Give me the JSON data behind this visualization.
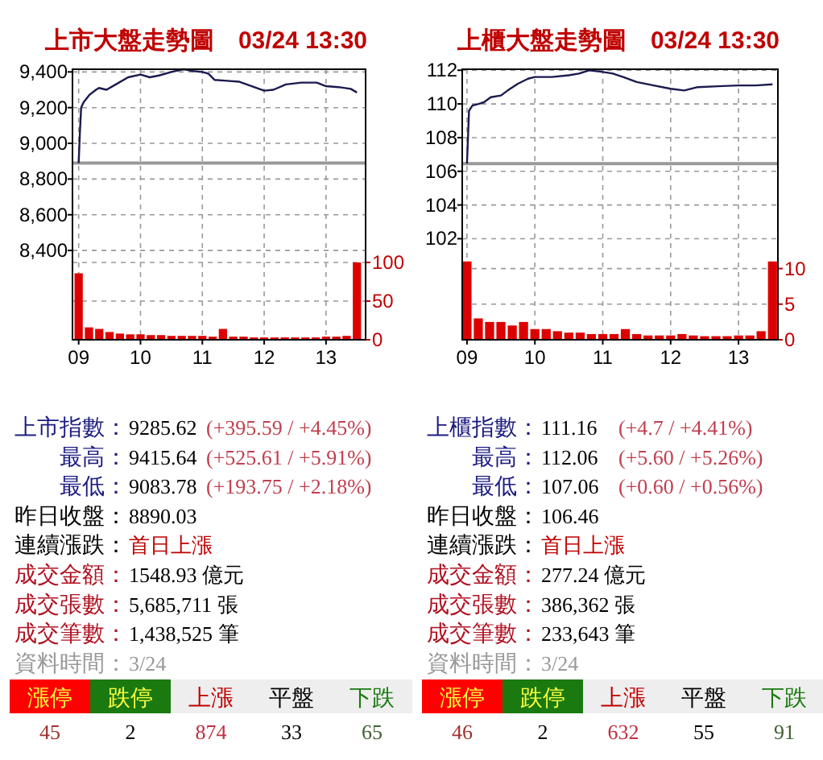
{
  "chart_data": [
    {
      "type": "line",
      "title": "上市大盤走勢圖　03/24 13:30",
      "grid": true,
      "xlim": [
        8.9,
        13.64
      ],
      "xticks": [
        {
          "value": 9,
          "label": "09"
        },
        10,
        11,
        12,
        13
      ],
      "ylim": [
        7900,
        9415
      ],
      "yticks": [
        {
          "value": 8400,
          "label": "8,400"
        },
        {
          "value": 8600,
          "label": "8,600"
        },
        {
          "value": 8800,
          "label": "8,800"
        },
        {
          "value": 9000,
          "label": "9,000"
        },
        {
          "value": 9200,
          "label": "9,200"
        },
        {
          "value": 9400,
          "label": "9,400"
        }
      ],
      "y2lim": [
        0,
        350
      ],
      "y2ticks": [
        0,
        50,
        100
      ],
      "ref_lines": [
        {
          "axis": "y",
          "value": 8890.03,
          "color": "#999999"
        }
      ],
      "series": [
        {
          "type": "line",
          "color": "#1a1a4e",
          "x": [
            9,
            9.02,
            9.04,
            9.08,
            9.17,
            9.28,
            9.33,
            9.45,
            9.6,
            9.8,
            10,
            10.15,
            10.3,
            10.5,
            10.7,
            10.85,
            11,
            11.1,
            11.2,
            11.4,
            11.6,
            11.8,
            12,
            12.15,
            12.35,
            12.6,
            12.85,
            13,
            13.2,
            13.4,
            13.5
          ],
          "values": [
            8890,
            9060,
            9200,
            9230,
            9270,
            9300,
            9310,
            9300,
            9330,
            9370,
            9385,
            9370,
            9380,
            9400,
            9415,
            9405,
            9400,
            9390,
            9355,
            9350,
            9345,
            9320,
            9295,
            9300,
            9330,
            9340,
            9340,
            9320,
            9315,
            9305,
            9285
          ]
        },
        {
          "type": "bar",
          "axis": "y2",
          "color": "#dd0000",
          "x": [
            9,
            9.167,
            9.333,
            9.5,
            9.667,
            9.833,
            10,
            10.167,
            10.333,
            10.5,
            10.667,
            10.833,
            11,
            11.167,
            11.333,
            11.5,
            11.667,
            11.833,
            12,
            12.167,
            12.333,
            12.5,
            12.667,
            12.833,
            13,
            13.167,
            13.333,
            13.5
          ],
          "values": [
            86,
            16,
            14,
            10,
            8,
            7,
            7,
            6,
            6,
            5,
            5,
            5,
            5,
            4,
            14,
            4,
            4,
            3,
            3,
            3,
            3,
            3,
            3,
            3,
            4,
            4,
            5,
            100
          ]
        }
      ]
    },
    {
      "type": "line",
      "title": "上櫃大盤走勢圖　03/24 13:30",
      "grid": true,
      "xlim": [
        8.93,
        13.58
      ],
      "xticks": [
        {
          "value": 9,
          "label": "09"
        },
        10,
        11,
        12,
        13
      ],
      "ylim": [
        96,
        112.06
      ],
      "yticks": [
        102,
        104,
        106,
        108,
        110,
        112
      ],
      "y2lim": [
        0,
        38
      ],
      "y2ticks": [
        0,
        5,
        10
      ],
      "ref_lines": [
        {
          "axis": "y",
          "value": 106.46,
          "color": "#999999"
        }
      ],
      "series": [
        {
          "type": "line",
          "color": "#1a1a4e",
          "x": [
            9,
            9.03,
            9.08,
            9.17,
            9.25,
            9.35,
            9.5,
            9.6,
            9.75,
            9.9,
            10,
            10.25,
            10.5,
            10.65,
            10.8,
            11,
            11.15,
            11.3,
            11.5,
            11.75,
            12,
            12.2,
            12.4,
            12.7,
            13,
            13.25,
            13.5
          ],
          "values": [
            106.46,
            109.6,
            109.9,
            110.0,
            110.1,
            110.4,
            110.5,
            110.8,
            111.2,
            111.5,
            111.6,
            111.6,
            111.7,
            111.8,
            112.0,
            111.9,
            111.8,
            111.6,
            111.3,
            111.1,
            110.9,
            110.8,
            111.0,
            111.05,
            111.1,
            111.1,
            111.16
          ]
        },
        {
          "type": "bar",
          "axis": "y2",
          "color": "#dd0000",
          "x": [
            9,
            9.167,
            9.333,
            9.5,
            9.667,
            9.833,
            10,
            10.167,
            10.333,
            10.5,
            10.667,
            10.833,
            11,
            11.167,
            11.333,
            11.5,
            11.667,
            11.833,
            12,
            12.167,
            12.333,
            12.5,
            12.667,
            12.833,
            13,
            13.167,
            13.333,
            13.5
          ],
          "values": [
            11,
            3,
            2.5,
            2.5,
            2,
            2.5,
            1.5,
            1.5,
            1.2,
            1,
            1,
            0.8,
            0.8,
            0.8,
            1.5,
            0.8,
            0.6,
            0.6,
            0.6,
            0.8,
            0.6,
            0.5,
            0.5,
            0.5,
            0.6,
            0.6,
            1.2,
            11
          ]
        }
      ]
    },
    {
      "type": "other",
      "annotations": [
        "上市指數：",
        "9285.62",
        "(+395.59 / +4.45%)",
        "最高：",
        "9415.64",
        "(+525.61 / +5.91%)",
        "最低：",
        "9083.78",
        "(+193.75 / +2.18%)",
        "昨日收盤：",
        "8890.03",
        "連續漲跌：",
        "首日上漲",
        "成交金額：",
        "1548.93 億元",
        "成交張數：",
        "5,685,711 張",
        "成交筆數：",
        "1,438,525 筆",
        "資料時間：",
        "3/24",
        "漲停",
        "跌停",
        "上漲",
        "平盤",
        "下跌",
        "45",
        "2",
        "874",
        "33",
        "65"
      ]
    },
    {
      "type": "other",
      "annotations": [
        "上櫃指數：",
        "111.16",
        "(+4.7 / +4.41%)",
        "最高：",
        "112.06",
        "(+5.60 / +5.26%)",
        "最低：",
        "107.06",
        "(+0.60 / +0.56%)",
        "昨日收盤：",
        "106.46",
        "連續漲跌：",
        "首日上漲",
        "成交金額：",
        "277.24 億元",
        "成交張數：",
        "386,362 張",
        "成交筆數：",
        "233,643 筆",
        "資料時間：",
        "3/24",
        "漲停",
        "跌停",
        "上漲",
        "平盤",
        "下跌",
        "46",
        "2",
        "632",
        "55",
        "91"
      ]
    }
  ]
}
